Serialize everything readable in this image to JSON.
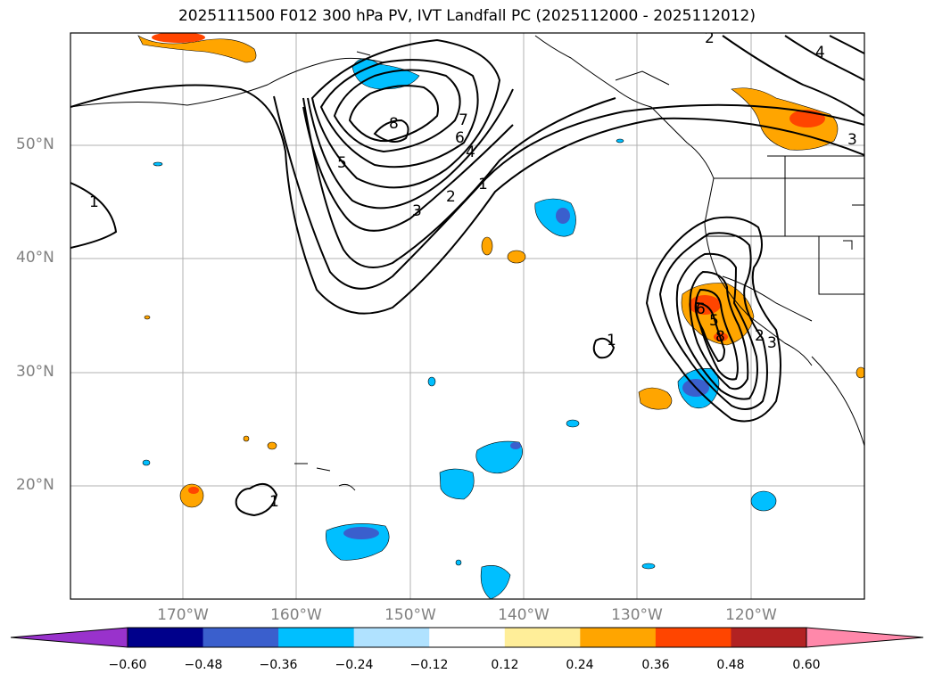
{
  "title": "2025111500 F012 300 hPa PV, IVT Landfall PC (2025112000 - 2025112012)",
  "lat_labels": [
    "50°N",
    "40°N",
    "30°N",
    "20°N"
  ],
  "lon_labels": [
    "170°W",
    "160°W",
    "150°W",
    "140°W",
    "130°W",
    "120°W"
  ],
  "contour_labels": [
    "1",
    "2",
    "3",
    "4",
    "5",
    "6",
    "7",
    "8",
    "1",
    "2",
    "3",
    "4",
    "1",
    "1",
    "2",
    "3",
    "5",
    "6",
    "8"
  ],
  "colorbar": {
    "ticks": [
      "−0.60",
      "−0.48",
      "−0.36",
      "−0.24",
      "−0.12",
      "0.12",
      "0.24",
      "0.36",
      "0.48",
      "0.60"
    ],
    "colors": [
      "#9932cc",
      "#00008b",
      "#3a5fcd",
      "#00bfff",
      "#b0e2ff",
      "#ffffff",
      "#ffee99",
      "#ffa500",
      "#ff4500",
      "#b22222",
      "#ff88aa"
    ]
  },
  "colors": {
    "grid": "#b0b0b0",
    "contour": "#000000",
    "axis_label": "#808080"
  }
}
